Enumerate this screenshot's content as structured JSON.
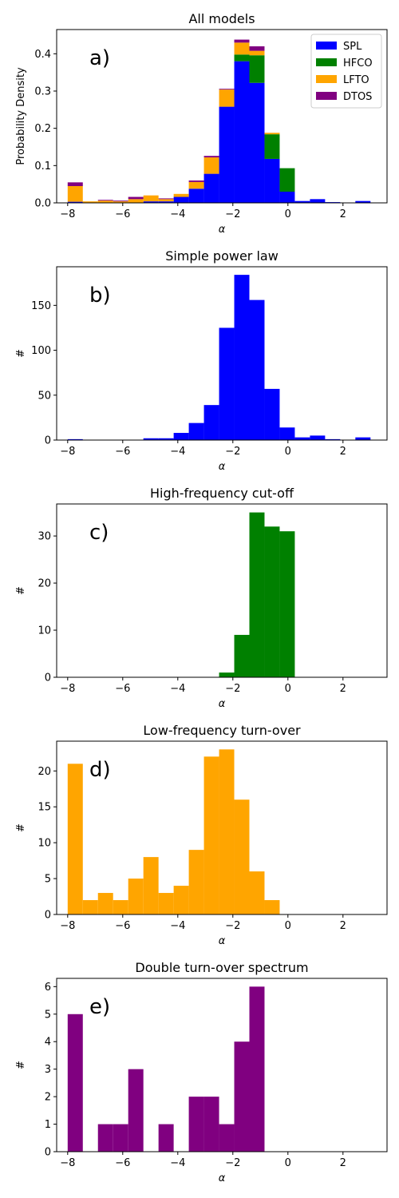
{
  "chart_data": [
    {
      "type": "bar",
      "stacked": true,
      "title": "All models",
      "panel_label": "a)",
      "xlabel": "α",
      "ylabel": "Probability Density",
      "xlim": [
        -8.4,
        3.6
      ],
      "ylim": [
        0,
        0.465
      ],
      "xticks": [
        -8,
        -6,
        -4,
        -2,
        0,
        2
      ],
      "yticks": [
        0.0,
        0.1,
        0.2,
        0.3,
        0.4
      ],
      "ytick_labels": [
        "0.0",
        "0.1",
        "0.2",
        "0.3",
        "0.4"
      ],
      "bin_edges": [
        -8.0,
        -7.45,
        -6.9,
        -6.35,
        -5.8,
        -5.25,
        -4.7,
        -4.15,
        -3.6,
        -3.05,
        -2.5,
        -1.95,
        -1.4,
        -0.85,
        -0.3,
        0.25,
        0.8,
        1.35,
        1.9,
        2.45,
        3.0
      ],
      "legend": {
        "position": "upper-right",
        "entries": [
          "SPL",
          "HFCO",
          "LFTO",
          "DTOS"
        ]
      },
      "series": [
        {
          "name": "SPL",
          "color": "#0000ff",
          "values": [
            0.003,
            0.0,
            0.0,
            0.0,
            0.0,
            0.004,
            0.004,
            0.016,
            0.038,
            0.078,
            0.258,
            0.38,
            0.322,
            0.118,
            0.03,
            0.005,
            0.01,
            0.002,
            0.0,
            0.005
          ]
        },
        {
          "name": "HFCO",
          "color": "#008000",
          "values": [
            0.0,
            0.0,
            0.0,
            0.0,
            0.0,
            0.0,
            0.0,
            0.0,
            0.0,
            0.0,
            0.0,
            0.018,
            0.074,
            0.066,
            0.063,
            0.0,
            0.0,
            0.0,
            0.0,
            0.0
          ]
        },
        {
          "name": "LFTO",
          "color": "#ffa500",
          "values": [
            0.042,
            0.004,
            0.006,
            0.004,
            0.01,
            0.016,
            0.006,
            0.008,
            0.018,
            0.044,
            0.046,
            0.032,
            0.012,
            0.004,
            0.0,
            0.0,
            0.0,
            0.0,
            0.0,
            0.0
          ]
        },
        {
          "name": "DTOS",
          "color": "#800080",
          "values": [
            0.01,
            0.0,
            0.002,
            0.002,
            0.006,
            0.0,
            0.002,
            0.0,
            0.004,
            0.004,
            0.002,
            0.008,
            0.012,
            0.0,
            0.0,
            0.0,
            0.0,
            0.0,
            0.0,
            0.0
          ]
        }
      ]
    },
    {
      "type": "bar",
      "title": "Simple power law",
      "panel_label": "b)",
      "xlabel": "α",
      "ylabel": "#",
      "xlim": [
        -8.4,
        3.6
      ],
      "ylim": [
        0,
        193
      ],
      "xticks": [
        -8,
        -6,
        -4,
        -2,
        0,
        2
      ],
      "yticks": [
        0,
        50,
        100,
        150
      ],
      "bin_edges": [
        -8.0,
        -7.45,
        -6.9,
        -6.35,
        -5.8,
        -5.25,
        -4.7,
        -4.15,
        -3.6,
        -3.05,
        -2.5,
        -1.95,
        -1.4,
        -0.85,
        -0.3,
        0.25,
        0.8,
        1.35,
        1.9,
        2.45,
        3.0
      ],
      "series": [
        {
          "name": "SPL",
          "color": "#0000ff",
          "values": [
            1,
            0,
            0,
            0,
            0,
            2,
            2,
            8,
            19,
            39,
            125,
            184,
            156,
            57,
            14,
            3,
            5,
            1,
            0,
            3
          ]
        }
      ]
    },
    {
      "type": "bar",
      "title": "High-frequency cut-off",
      "panel_label": "c)",
      "xlabel": "α",
      "ylabel": "#",
      "xlim": [
        -8.4,
        3.6
      ],
      "ylim": [
        0,
        36.8
      ],
      "xticks": [
        -8,
        -6,
        -4,
        -2,
        0,
        2
      ],
      "yticks": [
        0,
        10,
        20,
        30
      ],
      "bin_edges": [
        -8.0,
        -7.45,
        -6.9,
        -6.35,
        -5.8,
        -5.25,
        -4.7,
        -4.15,
        -3.6,
        -3.05,
        -2.5,
        -1.95,
        -1.4,
        -0.85,
        -0.3,
        0.25,
        0.8,
        1.35,
        1.9,
        2.45,
        3.0
      ],
      "series": [
        {
          "name": "HFCO",
          "color": "#008000",
          "values": [
            0,
            0,
            0,
            0,
            0,
            0,
            0,
            0,
            0,
            0,
            1,
            9,
            35,
            32,
            31,
            0,
            0,
            0,
            0,
            0
          ]
        }
      ]
    },
    {
      "type": "bar",
      "title": "Low-frequency turn-over",
      "panel_label": "d)",
      "xlabel": "α",
      "ylabel": "#",
      "xlim": [
        -8.4,
        3.6
      ],
      "ylim": [
        0,
        24.15
      ],
      "xticks": [
        -8,
        -6,
        -4,
        -2,
        0,
        2
      ],
      "yticks": [
        0,
        5,
        10,
        15,
        20
      ],
      "bin_edges": [
        -8.0,
        -7.45,
        -6.9,
        -6.35,
        -5.8,
        -5.25,
        -4.7,
        -4.15,
        -3.6,
        -3.05,
        -2.5,
        -1.95,
        -1.4,
        -0.85,
        -0.3,
        0.25,
        0.8,
        1.35,
        1.9,
        2.45,
        3.0
      ],
      "series": [
        {
          "name": "LFTO",
          "color": "#ffa500",
          "values": [
            21,
            2,
            3,
            2,
            5,
            8,
            3,
            4,
            9,
            22,
            23,
            16,
            6,
            2,
            0,
            0,
            0,
            0,
            0,
            0
          ]
        }
      ]
    },
    {
      "type": "bar",
      "title": "Double turn-over spectrum",
      "panel_label": "e)",
      "xlabel": "α",
      "ylabel": "#",
      "xlim": [
        -8.4,
        3.6
      ],
      "ylim": [
        0,
        6.3
      ],
      "xticks": [
        -8,
        -6,
        -4,
        -2,
        0,
        2
      ],
      "yticks": [
        0,
        1,
        2,
        3,
        4,
        5,
        6
      ],
      "bin_edges": [
        -8.0,
        -7.45,
        -6.9,
        -6.35,
        -5.8,
        -5.25,
        -4.7,
        -4.15,
        -3.6,
        -3.05,
        -2.5,
        -1.95,
        -1.4,
        -0.85,
        -0.3,
        0.25,
        0.8,
        1.35,
        1.9,
        2.45,
        3.0
      ],
      "series": [
        {
          "name": "DTOS",
          "color": "#800080",
          "values": [
            5,
            0,
            1,
            1,
            3,
            0,
            1,
            0,
            2,
            2,
            1,
            4,
            6,
            0,
            0,
            0,
            0,
            0,
            0,
            0
          ]
        }
      ]
    }
  ]
}
